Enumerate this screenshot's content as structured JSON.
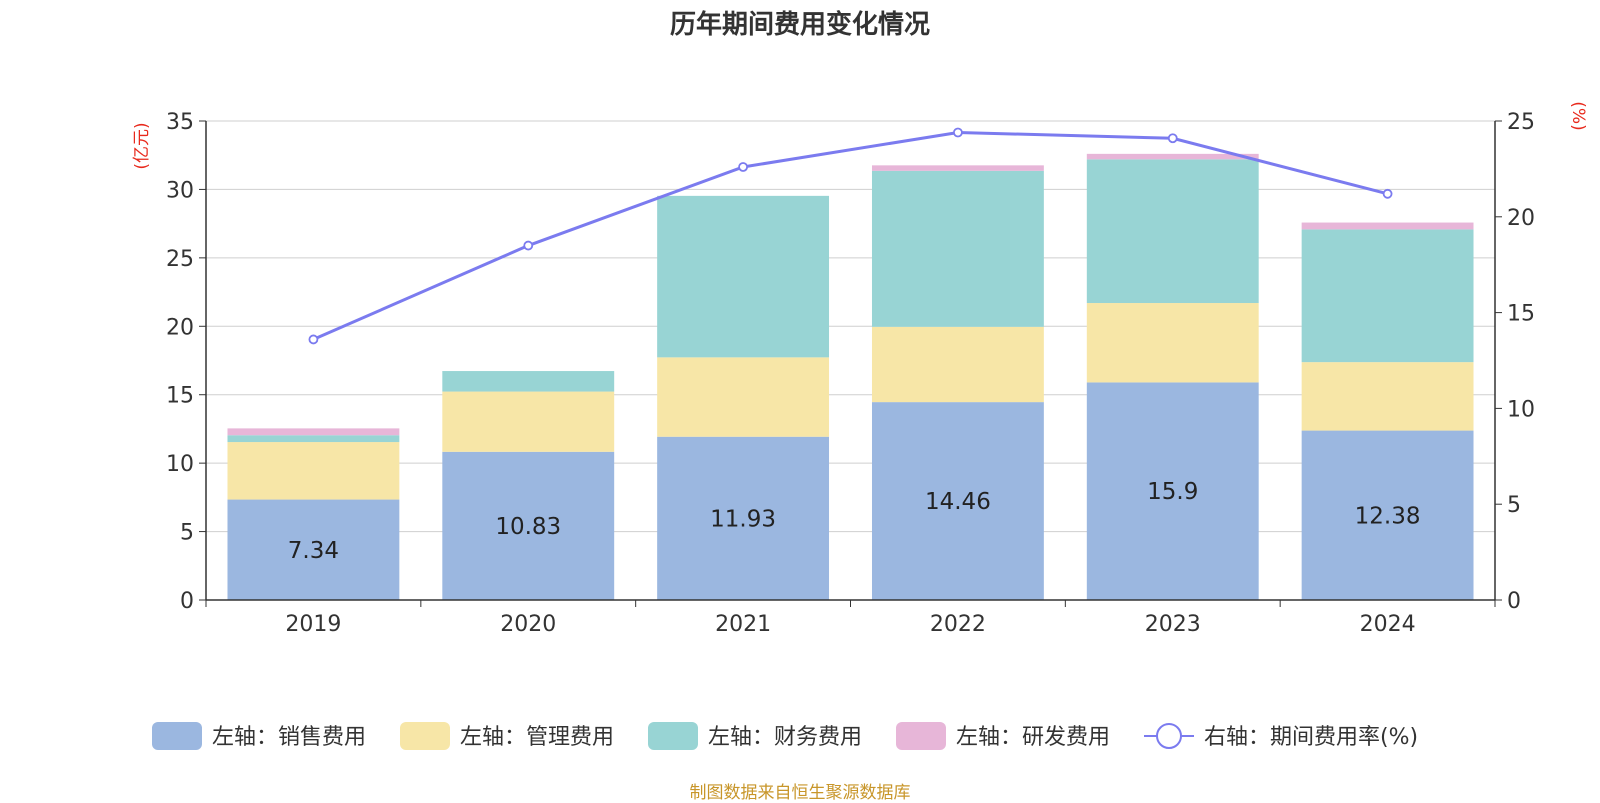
{
  "chart_data": {
    "type": "bar",
    "title": "历年期间费用变化情况",
    "categories": [
      "2019",
      "2020",
      "2021",
      "2022",
      "2023",
      "2024"
    ],
    "left_axis": {
      "unit_label": "(亿元)",
      "ylim": [
        0,
        35
      ],
      "ticks": [
        0,
        5,
        10,
        15,
        20,
        25,
        30,
        35
      ]
    },
    "right_axis": {
      "unit_label": "(%)",
      "ylim": [
        0,
        25
      ],
      "ticks": [
        0,
        5,
        10,
        15,
        20,
        25
      ]
    },
    "stacked": true,
    "series": [
      {
        "name": "左轴：销售费用",
        "axis": "left",
        "color": "#9bb7e0",
        "values": [
          7.34,
          10.83,
          11.93,
          14.46,
          15.9,
          12.38
        ],
        "show_labels": true
      },
      {
        "name": "左轴：管理费用",
        "axis": "left",
        "color": "#f7e6a7",
        "values": [
          4.2,
          4.4,
          5.8,
          5.5,
          5.8,
          5.0
        ]
      },
      {
        "name": "左轴：财务费用",
        "axis": "left",
        "color": "#98d4d4",
        "values": [
          0.5,
          1.5,
          11.8,
          11.4,
          10.5,
          9.7
        ]
      },
      {
        "name": "左轴：研发费用",
        "axis": "left",
        "color": "#e7b6d8",
        "values": [
          0.5,
          0.0,
          0.0,
          0.4,
          0.4,
          0.5
        ]
      }
    ],
    "line_series": {
      "name": "右轴：期间费用率(%)",
      "axis": "right",
      "color": "#7b7bef",
      "values": [
        13.6,
        18.5,
        22.6,
        24.4,
        24.1,
        21.2
      ]
    },
    "grid": true,
    "legend_position": "bottom"
  },
  "footer": "制图数据来自恒生聚源数据库"
}
